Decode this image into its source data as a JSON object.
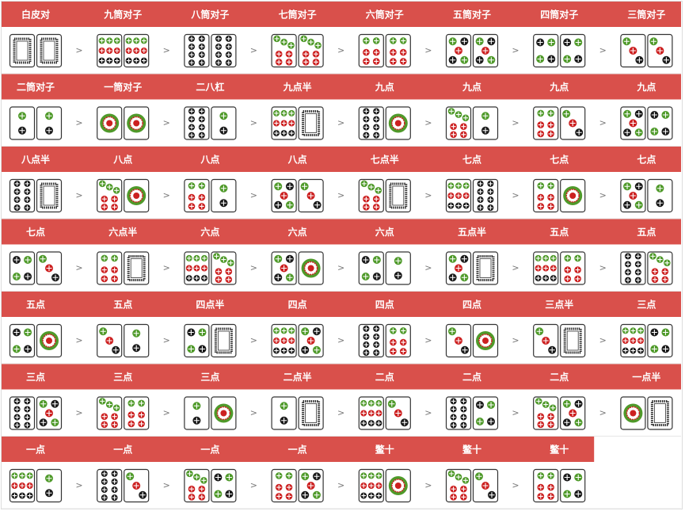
{
  "separator": ">",
  "rows": [
    {
      "hands": [
        {
          "label": "白皮对",
          "tiles": [
            0,
            0
          ]
        },
        {
          "label": "九筒对子",
          "tiles": [
            9,
            9
          ]
        },
        {
          "label": "八筒对子",
          "tiles": [
            8,
            8
          ]
        },
        {
          "label": "七筒对子",
          "tiles": [
            7,
            7
          ]
        },
        {
          "label": "六筒对子",
          "tiles": [
            6,
            6
          ]
        },
        {
          "label": "五筒对子",
          "tiles": [
            5,
            5
          ]
        },
        {
          "label": "四筒对子",
          "tiles": [
            4,
            4
          ]
        },
        {
          "label": "三筒对子",
          "tiles": [
            3,
            3
          ]
        }
      ]
    },
    {
      "hands": [
        {
          "label": "二筒对子",
          "tiles": [
            2,
            2
          ]
        },
        {
          "label": "一筒对子",
          "tiles": [
            1,
            1
          ]
        },
        {
          "label": "二八杠",
          "tiles": [
            8,
            2
          ]
        },
        {
          "label": "九点半",
          "tiles": [
            9,
            0
          ]
        },
        {
          "label": "九点",
          "tiles": [
            8,
            1
          ]
        },
        {
          "label": "九点",
          "tiles": [
            7,
            2
          ]
        },
        {
          "label": "九点",
          "tiles": [
            6,
            3
          ]
        },
        {
          "label": "九点",
          "tiles": [
            5,
            4
          ]
        }
      ]
    },
    {
      "hands": [
        {
          "label": "八点半",
          "tiles": [
            8,
            0
          ]
        },
        {
          "label": "八点",
          "tiles": [
            7,
            1
          ]
        },
        {
          "label": "八点",
          "tiles": [
            6,
            2
          ]
        },
        {
          "label": "八点",
          "tiles": [
            5,
            3
          ]
        },
        {
          "label": "七点半",
          "tiles": [
            7,
            0
          ]
        },
        {
          "label": "七点",
          "tiles": [
            9,
            8
          ]
        },
        {
          "label": "七点",
          "tiles": [
            6,
            1
          ]
        },
        {
          "label": "七点",
          "tiles": [
            5,
            2
          ]
        }
      ]
    },
    {
      "hands": [
        {
          "label": "七点",
          "tiles": [
            4,
            3
          ]
        },
        {
          "label": "六点半",
          "tiles": [
            6,
            0
          ]
        },
        {
          "label": "六点",
          "tiles": [
            9,
            7
          ]
        },
        {
          "label": "六点",
          "tiles": [
            5,
            1
          ]
        },
        {
          "label": "六点",
          "tiles": [
            4,
            2
          ]
        },
        {
          "label": "五点半",
          "tiles": [
            5,
            0
          ]
        },
        {
          "label": "五点",
          "tiles": [
            9,
            6
          ]
        },
        {
          "label": "五点",
          "tiles": [
            8,
            7
          ]
        }
      ]
    },
    {
      "hands": [
        {
          "label": "五点",
          "tiles": [
            4,
            1
          ]
        },
        {
          "label": "五点",
          "tiles": [
            3,
            2
          ]
        },
        {
          "label": "四点半",
          "tiles": [
            4,
            0
          ]
        },
        {
          "label": "四点",
          "tiles": [
            9,
            5
          ]
        },
        {
          "label": "四点",
          "tiles": [
            8,
            6
          ]
        },
        {
          "label": "四点",
          "tiles": [
            3,
            1
          ]
        },
        {
          "label": "三点半",
          "tiles": [
            3,
            0
          ]
        },
        {
          "label": "三点",
          "tiles": [
            9,
            4
          ]
        }
      ]
    },
    {
      "hands": [
        {
          "label": "三点",
          "tiles": [
            8,
            5
          ]
        },
        {
          "label": "三点",
          "tiles": [
            7,
            6
          ]
        },
        {
          "label": "三点",
          "tiles": [
            2,
            1
          ]
        },
        {
          "label": "二点半",
          "tiles": [
            2,
            0
          ]
        },
        {
          "label": "二点",
          "tiles": [
            9,
            3
          ]
        },
        {
          "label": "二点",
          "tiles": [
            8,
            4
          ]
        },
        {
          "label": "二点",
          "tiles": [
            7,
            5
          ]
        },
        {
          "label": "一点半",
          "tiles": [
            1,
            0
          ]
        }
      ]
    },
    {
      "hands": [
        {
          "label": "一点",
          "tiles": [
            9,
            2
          ]
        },
        {
          "label": "一点",
          "tiles": [
            8,
            3
          ]
        },
        {
          "label": "一点",
          "tiles": [
            7,
            4
          ]
        },
        {
          "label": "一点",
          "tiles": [
            6,
            5
          ]
        },
        {
          "label": "鳖十",
          "tiles": [
            9,
            1
          ]
        },
        {
          "label": "鳖十",
          "tiles": [
            7,
            3
          ]
        },
        {
          "label": "鳖十",
          "tiles": [
            6,
            4
          ]
        }
      ]
    }
  ]
}
